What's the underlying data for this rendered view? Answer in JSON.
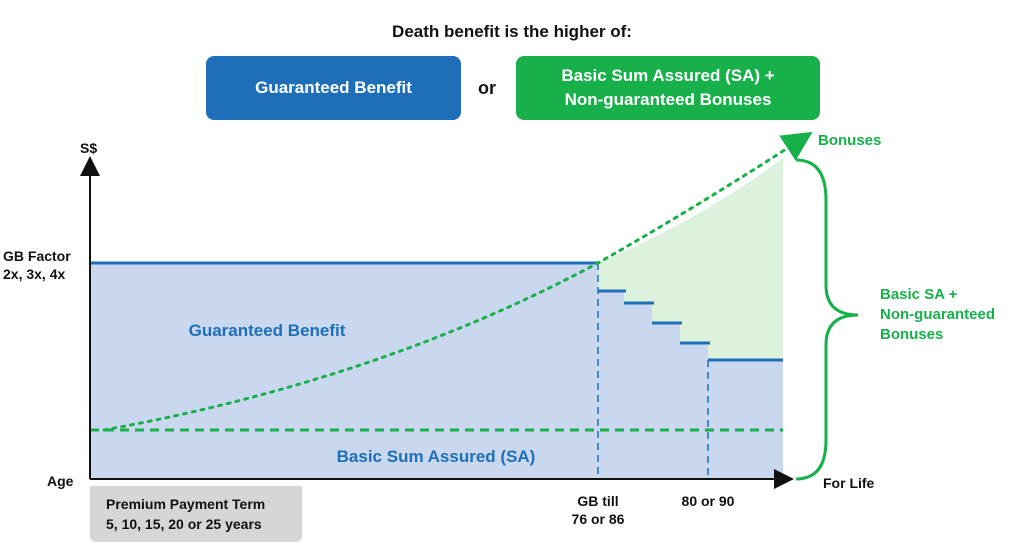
{
  "header": {
    "title": "Death benefit is the higher of:",
    "or_label": "or"
  },
  "boxes": {
    "guaranteed": "Guaranteed Benefit",
    "sa_line1": "Basic Sum Assured (SA) +",
    "sa_line2": "Non-guaranteed Bonuses"
  },
  "axes": {
    "y_label": "S$",
    "x_label": "Age",
    "gb_factor_line1": "GB Factor",
    "gb_factor_line2": "2x, 3x, 4x",
    "for_life": "For Life",
    "gb_till_line1": "GB till",
    "gb_till_line2": "76 or 86",
    "age_80_90": "80 or 90"
  },
  "regions": {
    "guaranteed_benefit": "Guaranteed Benefit",
    "basic_sa": "Basic Sum Assured (SA)"
  },
  "annotations": {
    "bonuses": "Bonuses",
    "brace_line1": "Basic SA +",
    "brace_line2": "Non-guaranteed",
    "brace_line3": "Bonuses"
  },
  "premium_term": {
    "line1": "Premium Payment Term",
    "line2": "5, 10, 15, 20 or 25 years"
  },
  "colors": {
    "blue": "#1e6fb8",
    "green": "#18b04a",
    "blue_fill": "#c9d8ef",
    "green_fill": "#dcf2dc"
  }
}
